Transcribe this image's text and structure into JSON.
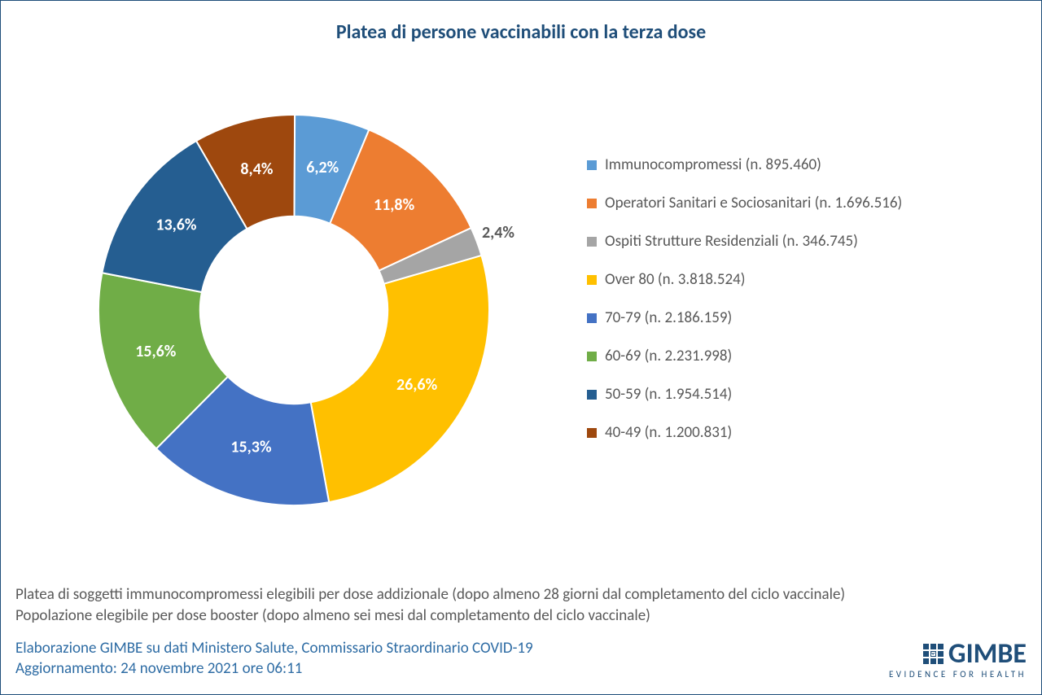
{
  "title": "Platea di persone vaccinabili con la terza dose",
  "chart": {
    "type": "donut",
    "inner_radius_ratio": 0.48,
    "start_angle_deg": 0,
    "background_color": "#ffffff",
    "label_fontsize": 20,
    "label_color_light": "#ffffff",
    "label_color_dark": "#595959",
    "slices": [
      {
        "label": "8,4%",
        "value": 8.4,
        "color": "#9e480e",
        "legend": "40-49 (n. 1.200.831)",
        "label_style": "light"
      },
      {
        "label": "6,2%",
        "value": 6.2,
        "color": "#5b9bd5",
        "legend": "Immunocompromessi (n. 895.460)",
        "label_style": "light"
      },
      {
        "label": "11,8%",
        "value": 11.8,
        "color": "#ed7d31",
        "legend": "Operatori Sanitari e Sociosanitari (n. 1.696.516)",
        "label_style": "light"
      },
      {
        "label": "2,4%",
        "value": 2.4,
        "color": "#a5a5a5",
        "legend": "Ospiti Strutture Residenziali (n. 346.745)",
        "label_style": "dark"
      },
      {
        "label": "26,6%",
        "value": 26.6,
        "color": "#ffc000",
        "legend": "Over 80 (n. 3.818.524)",
        "label_style": "light"
      },
      {
        "label": "15,3%",
        "value": 15.3,
        "color": "#4472c4",
        "legend": "70-79 (n. 2.186.159)",
        "label_style": "light"
      },
      {
        "label": "15,6%",
        "value": 15.6,
        "color": "#70ad47",
        "legend": "60-69 (n. 2.231.998)",
        "label_style": "light"
      },
      {
        "label": "13,6%",
        "value": 13.6,
        "color": "#255e91",
        "legend": "50-59 (n. 1.954.514)",
        "label_style": "light"
      }
    ],
    "legend_order": [
      1,
      2,
      3,
      4,
      5,
      6,
      7,
      0
    ]
  },
  "notes": {
    "line1": "Platea di soggetti immunocompromessi elegibili per dose addizionale (dopo almeno 28 giorni dal completamento del ciclo vaccinale)",
    "line2": "Popolazione elegibile per dose booster (dopo almeno sei mesi dal completamento del ciclo vaccinale)"
  },
  "source": {
    "line1": "Elaborazione GIMBE su dati Ministero Salute, Commissario Straordinario COVID-19",
    "line2": "Aggiornamento: 24 novembre 2021 ore 06:11"
  },
  "logo": {
    "text": "GIMBE",
    "subtitle": "EVIDENCE FOR HEALTH",
    "color": "#1f4e79"
  }
}
